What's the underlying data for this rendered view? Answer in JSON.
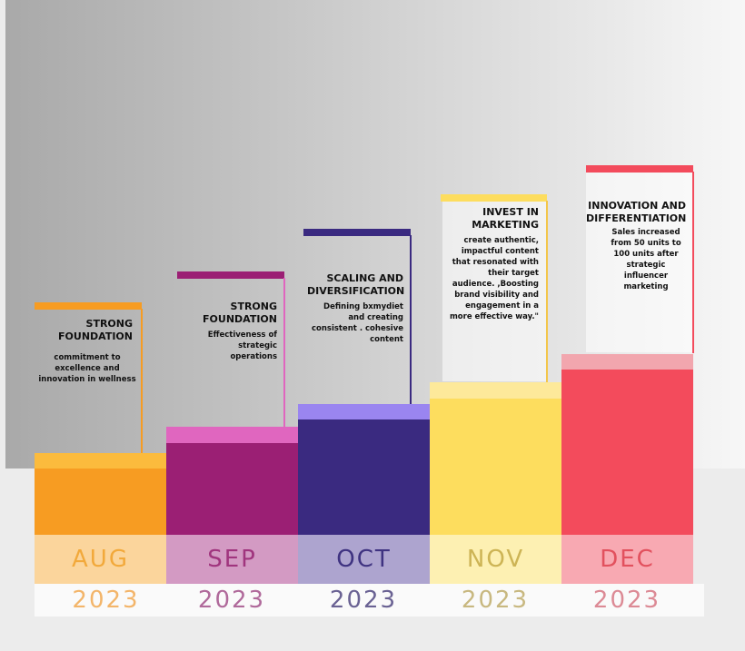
{
  "months": [
    {
      "month": "AUG",
      "year": "2023",
      "heading": "STRONG FOUNDATION",
      "desc": "commitment to excellence and innovation in wellness",
      "colors": {
        "body": "#f79c22",
        "cap": "#fbbb3d",
        "month_bg": "#fbd59c",
        "month_text": "#f2a93b",
        "year_text": "#f3b56a",
        "marker": "#f79c22"
      }
    },
    {
      "month": "SEP",
      "year": "2023",
      "heading": "STRONG FOUNDATION",
      "desc": "Effectiveness of strategic operations",
      "colors": {
        "body": "#9b1f74",
        "cap": "#e066bf",
        "month_bg": "#d39ac3",
        "month_text": "#a0357e",
        "year_text": "#b06a9b",
        "marker": "#9b1f74"
      }
    },
    {
      "month": "OCT",
      "year": "2023",
      "heading": "SCALING AND DIVERSIFICATION",
      "desc": "Defining bxmydiet and creating consistent . cohesive content",
      "colors": {
        "body": "#3a2a80",
        "cap": "#9a85f0",
        "month_bg": "#ada4cf",
        "month_text": "#3f3381",
        "year_text": "#6a6293",
        "marker": "#3a2a80"
      }
    },
    {
      "month": "NOV",
      "year": "2023",
      "heading": "INVEST IN MARKETING",
      "desc": "create authentic, impactful content that resonated with their target audience. ,Boosting brand visibility and engagement in a more effective way.\"",
      "colors": {
        "body": "#fddd5e",
        "cap": "#fde99a",
        "month_bg": "#fdf0b2",
        "month_text": "#cdb455",
        "year_text": "#c8b880",
        "marker": "#fddd5e"
      }
    },
    {
      "month": "DEC",
      "year": "2023",
      "heading": "INNOVATION AND DIFFERENTIATION",
      "desc": "Sales increased from 50 units to 100 units after strategic influencer marketing",
      "colors": {
        "body": "#f34b5c",
        "cap": "#f2a6ae",
        "month_bg": "#f8a9b2",
        "month_text": "#e2515e",
        "year_text": "#dc8a95",
        "marker": "#f34b5c"
      }
    }
  ]
}
